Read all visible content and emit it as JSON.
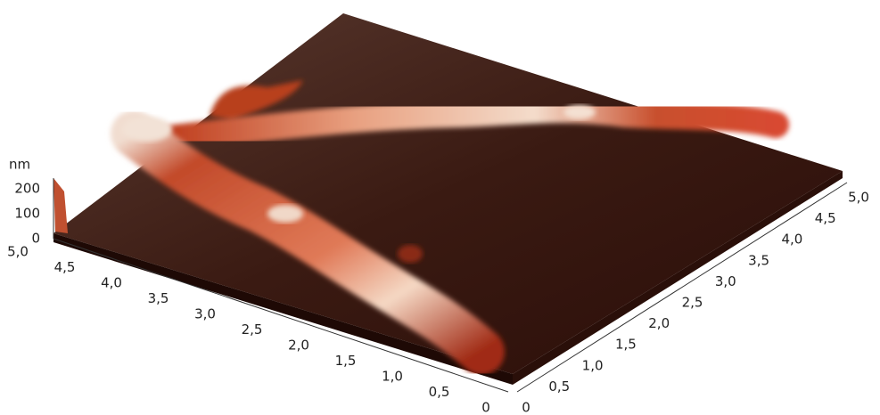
{
  "z_axis": {
    "unit": "nm",
    "ticks": [
      "200",
      "100",
      "0"
    ]
  },
  "left_axis": {
    "ticks": [
      "5,0",
      "4,5",
      "4,0",
      "3,5",
      "3,0",
      "2,5",
      "2,0",
      "1,5",
      "1,0",
      "0,5",
      "0"
    ]
  },
  "right_axis": {
    "ticks": [
      "0",
      "0,5",
      "1,0",
      "1,5",
      "2,0",
      "2,5",
      "3,0",
      "3,5",
      "4,0",
      "4,5",
      "5,0"
    ]
  }
}
